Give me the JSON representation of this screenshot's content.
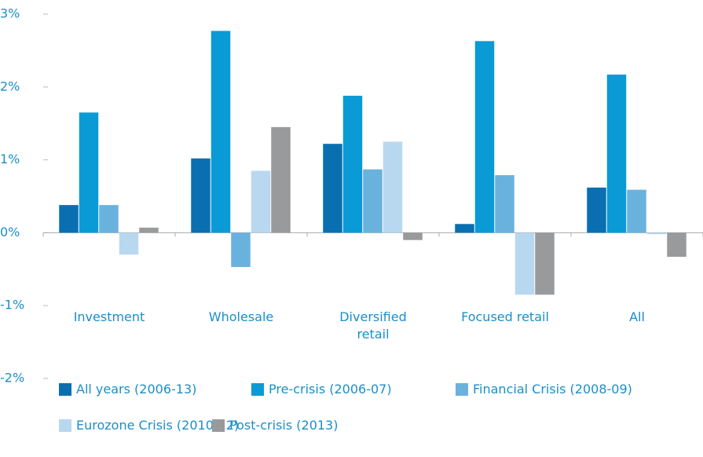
{
  "chart_data": {
    "type": "bar",
    "categories": [
      "Investment",
      "Wholesale",
      "Diversified retail",
      "Focused retail",
      "All"
    ],
    "series": [
      {
        "name": "All years (2006-13)",
        "color": "#0a6fb0",
        "values": [
          0.38,
          1.02,
          1.22,
          0.12,
          0.62
        ]
      },
      {
        "name": "Pre-crisis (2006-07)",
        "color": "#0a9ad6",
        "values": [
          1.65,
          2.77,
          1.88,
          2.63,
          2.17
        ]
      },
      {
        "name": "Financial Crisis (2008-09)",
        "color": "#6ab2de",
        "values": [
          0.38,
          -0.47,
          0.87,
          0.79,
          0.59
        ]
      },
      {
        "name": "Eurozone Crisis (2010-12)",
        "color": "#b8d8ef",
        "values": [
          -0.3,
          0.85,
          1.25,
          -0.85,
          -0.02
        ]
      },
      {
        "name": "Post-crisis (2013)",
        "color": "#999a9c",
        "values": [
          0.07,
          1.45,
          -0.1,
          -0.85,
          -0.33
        ]
      }
    ],
    "ylim": [
      -2,
      3
    ],
    "yticks": [
      {
        "value": -2,
        "label": "-2%"
      },
      {
        "value": -1,
        "label": "-1%"
      },
      {
        "value": 0,
        "label": "0%"
      },
      {
        "value": 1,
        "label": "1%"
      },
      {
        "value": 2,
        "label": "2%"
      },
      {
        "value": 3,
        "label": "3%"
      }
    ],
    "legend": "bottom"
  }
}
